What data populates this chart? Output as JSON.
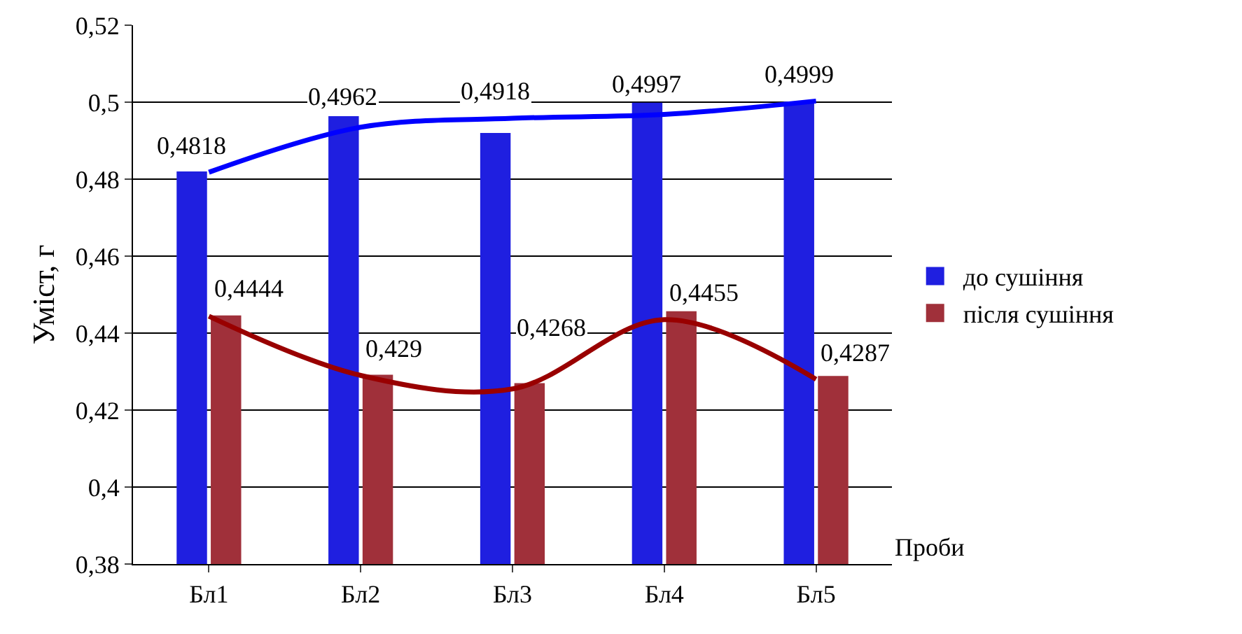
{
  "chart_data": {
    "type": "bar",
    "ylabel": "Уміст, г",
    "xlabel": "Проби",
    "categories": [
      "Бл1",
      "Бл2",
      "Бл3",
      "Бл4",
      "Бл5"
    ],
    "series": [
      {
        "name": "до сушіння",
        "color": "#1f1fe0",
        "values": [
          0.4818,
          0.4962,
          0.4918,
          0.4997,
          0.4999
        ],
        "value_labels": [
          "0,4818",
          "0,4962",
          "0,4918",
          "0,4997",
          "0,4999"
        ]
      },
      {
        "name": "після сушіння",
        "color": "#a0303a",
        "values": [
          0.4444,
          0.429,
          0.4268,
          0.4455,
          0.4287
        ],
        "value_labels": [
          "0,4444",
          "0,429",
          "0,4268",
          "0,4455",
          "0,4287"
        ]
      },
      {
        "type": "line",
        "color": "#0000ff",
        "values": [
          0.4818,
          0.4935,
          0.4958,
          0.4968,
          0.5003
        ]
      },
      {
        "type": "line",
        "color": "#990000",
        "values": [
          0.4444,
          0.429,
          0.4255,
          0.4435,
          0.428
        ]
      }
    ],
    "ylim": [
      0.38,
      0.52
    ],
    "yticks": [
      {
        "value": 0.38,
        "label": "0,38"
      },
      {
        "value": 0.4,
        "label": "0,4"
      },
      {
        "value": 0.42,
        "label": "0,42"
      },
      {
        "value": 0.44,
        "label": "0,44"
      },
      {
        "value": 0.46,
        "label": "0,46"
      },
      {
        "value": 0.48,
        "label": "0,48"
      },
      {
        "value": 0.5,
        "label": "0,5"
      },
      {
        "value": 0.52,
        "label": "0,52"
      }
    ],
    "grid": "y",
    "legend": "right",
    "line_style": "solid"
  }
}
